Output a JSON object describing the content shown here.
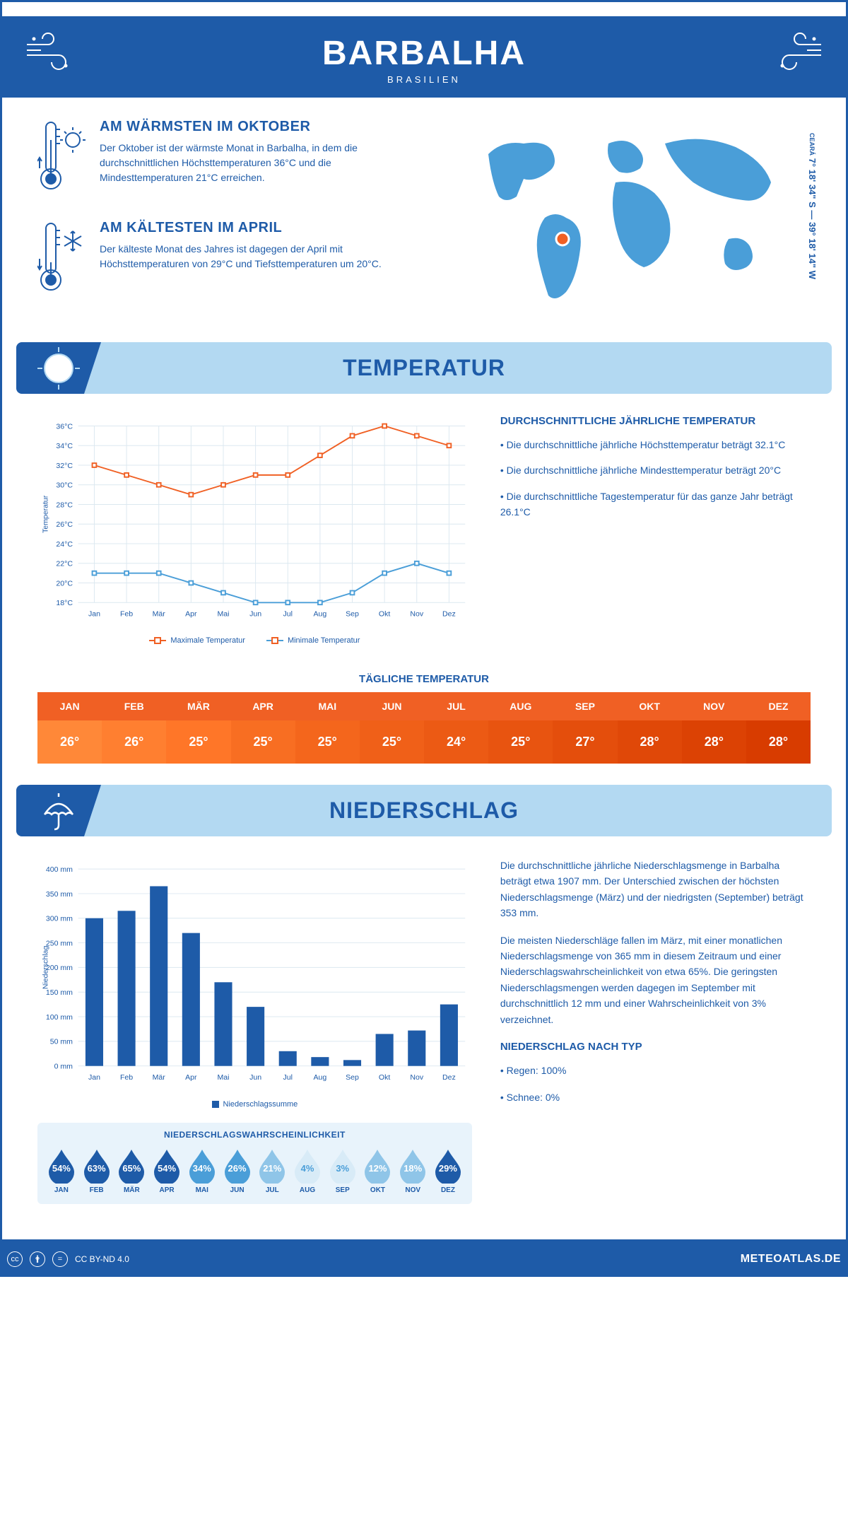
{
  "header": {
    "title": "BARBALHA",
    "subtitle": "BRASILIEN"
  },
  "coords": "7° 18' 34\" S — 39° 18' 14\" W",
  "region": "CEARÁ",
  "warmest": {
    "title": "AM WÄRMSTEN IM OKTOBER",
    "text": "Der Oktober ist der wärmste Monat in Barbalha, in dem die durchschnittlichen Höchsttemperaturen 36°C und die Mindesttemperaturen 21°C erreichen."
  },
  "coldest": {
    "title": "AM KÄLTESTEN IM APRIL",
    "text": "Der kälteste Monat des Jahres ist dagegen der April mit Höchsttemperaturen von 29°C und Tiefsttemperaturen um 20°C."
  },
  "sections": {
    "temp": "TEMPERATUR",
    "precip": "NIEDERSCHLAG"
  },
  "months": [
    "Jan",
    "Feb",
    "Mär",
    "Apr",
    "Mai",
    "Jun",
    "Jul",
    "Aug",
    "Sep",
    "Okt",
    "Nov",
    "Dez"
  ],
  "months_upper": [
    "JAN",
    "FEB",
    "MÄR",
    "APR",
    "MAI",
    "JUN",
    "JUL",
    "AUG",
    "SEP",
    "OKT",
    "NOV",
    "DEZ"
  ],
  "temp_chart": {
    "type": "line",
    "ylabel": "Temperatur",
    "ylim": [
      18,
      36
    ],
    "ytick_step": 2,
    "max_series": [
      32,
      31,
      30,
      29,
      30,
      31,
      31,
      33,
      35,
      36,
      35,
      34
    ],
    "min_series": [
      21,
      21,
      21,
      20,
      19,
      18,
      18,
      18,
      19,
      21,
      22,
      21
    ],
    "max_color": "#f06024",
    "min_color": "#4a9ed8",
    "grid_color": "#dce8f0",
    "legend_max": "Maximale Temperatur",
    "legend_min": "Minimale Temperatur"
  },
  "temp_info": {
    "title": "DURCHSCHNITTLICHE JÄHRLICHE TEMPERATUR",
    "p1": "• Die durchschnittliche jährliche Höchsttemperatur beträgt 32.1°C",
    "p2": "• Die durchschnittliche jährliche Mindesttemperatur beträgt 20°C",
    "p3": "• Die durchschnittliche Tagestemperatur für das ganze Jahr beträgt 26.1°C"
  },
  "daily": {
    "title": "TÄGLICHE TEMPERATUR",
    "values": [
      "26°",
      "26°",
      "25°",
      "25°",
      "25°",
      "25°",
      "24°",
      "25°",
      "27°",
      "28°",
      "28°",
      "28°"
    ],
    "head_color": "#f06024",
    "val_colors": [
      "#ff8838",
      "#ff7f30",
      "#ff7628",
      "#f86e22",
      "#f4661c",
      "#f06018",
      "#ec5a14",
      "#e85410",
      "#e44e0c",
      "#e04808",
      "#dc4204",
      "#d83c00"
    ]
  },
  "precip_chart": {
    "type": "bar",
    "ylabel": "Niederschlag",
    "ylim": [
      0,
      400
    ],
    "ytick_step": 50,
    "values": [
      300,
      315,
      365,
      270,
      170,
      120,
      30,
      18,
      12,
      65,
      72,
      125
    ],
    "bar_color": "#1e5ba8",
    "grid_color": "#dce8f0",
    "legend": "Niederschlagssumme"
  },
  "precip_info": {
    "p1": "Die durchschnittliche jährliche Niederschlagsmenge in Barbalha beträgt etwa 1907 mm. Der Unterschied zwischen der höchsten Niederschlagsmenge (März) und der niedrigsten (September) beträgt 353 mm.",
    "p2": "Die meisten Niederschläge fallen im März, mit einer monatlichen Niederschlagsmenge von 365 mm in diesem Zeitraum und einer Niederschlagswahrscheinlichkeit von etwa 65%. Die geringsten Niederschlagsmengen werden dagegen im September mit durchschnittlich 12 mm und einer Wahrscheinlichkeit von 3% verzeichnet.",
    "type_title": "NIEDERSCHLAG NACH TYP",
    "type1": "• Regen: 100%",
    "type2": "• Schnee: 0%"
  },
  "prob": {
    "title": "NIEDERSCHLAGSWAHRSCHEINLICHKEIT",
    "values": [
      "54%",
      "63%",
      "65%",
      "54%",
      "34%",
      "26%",
      "21%",
      "4%",
      "3%",
      "12%",
      "18%",
      "29%"
    ],
    "colors": [
      "#1e5ba8",
      "#1e5ba8",
      "#1e5ba8",
      "#1e5ba8",
      "#4a9ed8",
      "#4a9ed8",
      "#8fc5e8",
      "#d8ebf7",
      "#d8ebf7",
      "#8fc5e8",
      "#8fc5e8",
      "#1e5ba8"
    ],
    "text_colors": [
      "#fff",
      "#fff",
      "#fff",
      "#fff",
      "#fff",
      "#fff",
      "#fff",
      "#4a9ed8",
      "#4a9ed8",
      "#fff",
      "#fff",
      "#fff"
    ]
  },
  "footer": {
    "license": "CC BY-ND 4.0",
    "site": "METEOATLAS.DE"
  }
}
